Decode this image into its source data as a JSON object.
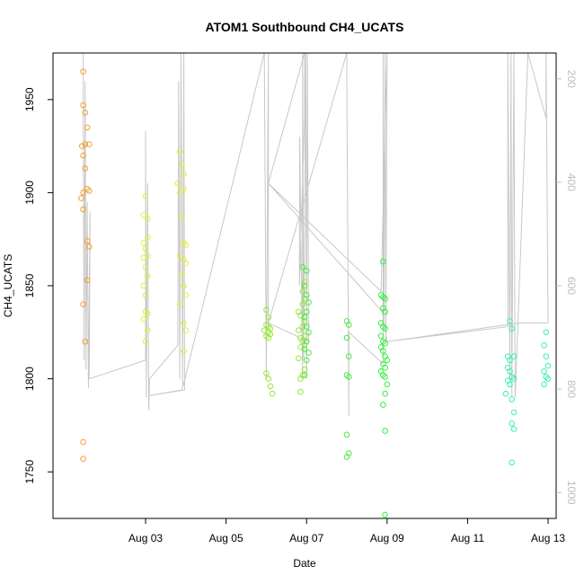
{
  "chart_data": {
    "type": "scatter",
    "title": "ATOM1 Southbound CH4_UCATS",
    "xlabel": "Date",
    "ylabel": "CH4_UCATS",
    "xlim": [
      0.7,
      13.2
    ],
    "ylim": [
      1725,
      1975
    ],
    "y2lim": [
      1050,
      150
    ],
    "x_tick_labels": [
      {
        "x": 3,
        "label": "Aug 03"
      },
      {
        "x": 5,
        "label": "Aug 05"
      },
      {
        "x": 7,
        "label": "Aug 07"
      },
      {
        "x": 9,
        "label": "Aug 09"
      },
      {
        "x": 11,
        "label": "Aug 11"
      },
      {
        "x": 13,
        "label": "Aug 13"
      }
    ],
    "y_ticks": [
      1750,
      1800,
      1850,
      1900,
      1950
    ],
    "y2_ticks": [
      200,
      400,
      600,
      800,
      1000
    ],
    "grid": false,
    "colors": {
      "axis": "#000000",
      "secondary_axis": "#bdbdbd",
      "secondary_line": "#c8c8c8"
    },
    "series": [
      {
        "color": "#f0a030",
        "points": [
          [
            1.45,
            1965
          ],
          [
            1.45,
            1947
          ],
          [
            1.5,
            1943
          ],
          [
            1.55,
            1935
          ],
          [
            1.42,
            1925
          ],
          [
            1.5,
            1926
          ],
          [
            1.6,
            1926
          ],
          [
            1.45,
            1920
          ],
          [
            1.5,
            1913
          ],
          [
            1.55,
            1902
          ],
          [
            1.6,
            1901
          ],
          [
            1.45,
            1900
          ],
          [
            1.4,
            1897
          ],
          [
            1.45,
            1891
          ],
          [
            1.55,
            1874
          ],
          [
            1.6,
            1871
          ],
          [
            1.55,
            1853
          ],
          [
            1.45,
            1840
          ],
          [
            1.5,
            1820
          ],
          [
            1.45,
            1766
          ],
          [
            1.45,
            1757
          ]
        ]
      },
      {
        "color": "#e2ee44",
        "points": [
          [
            3.0,
            1898
          ],
          [
            2.95,
            1888
          ],
          [
            3.05,
            1886
          ],
          [
            3.05,
            1876
          ],
          [
            2.95,
            1873
          ],
          [
            3.0,
            1870
          ],
          [
            3.05,
            1866
          ],
          [
            2.95,
            1865
          ],
          [
            3.0,
            1860
          ],
          [
            3.05,
            1855
          ],
          [
            2.95,
            1850
          ],
          [
            3.0,
            1845
          ],
          [
            3.0,
            1836
          ],
          [
            3.05,
            1835
          ],
          [
            2.95,
            1832
          ],
          [
            3.05,
            1826
          ],
          [
            3.0,
            1820
          ],
          [
            3.85,
            1922
          ],
          [
            3.9,
            1915
          ],
          [
            3.95,
            1910
          ],
          [
            3.8,
            1905
          ],
          [
            3.85,
            1900
          ],
          [
            3.95,
            1902
          ],
          [
            3.9,
            1887
          ],
          [
            3.95,
            1873
          ],
          [
            4.0,
            1872
          ],
          [
            3.85,
            1866
          ],
          [
            3.95,
            1864
          ],
          [
            4.0,
            1862
          ],
          [
            3.9,
            1856
          ],
          [
            3.95,
            1850
          ],
          [
            4.0,
            1845
          ],
          [
            3.85,
            1840
          ],
          [
            3.95,
            1830
          ],
          [
            4.0,
            1826
          ],
          [
            3.95,
            1815
          ]
        ]
      },
      {
        "color": "#9ae63a",
        "points": [
          [
            6.0,
            1837
          ],
          [
            6.05,
            1833
          ],
          [
            6.0,
            1829
          ],
          [
            6.05,
            1828
          ],
          [
            6.1,
            1827
          ],
          [
            5.95,
            1826
          ],
          [
            6.05,
            1825
          ],
          [
            6.1,
            1824
          ],
          [
            6.0,
            1823
          ],
          [
            6.05,
            1822
          ],
          [
            6.0,
            1803
          ],
          [
            6.05,
            1800
          ],
          [
            6.1,
            1796
          ],
          [
            6.15,
            1792
          ],
          [
            6.8,
            1836
          ],
          [
            6.85,
            1834
          ],
          [
            6.95,
            1831
          ],
          [
            6.9,
            1828
          ],
          [
            6.8,
            1826
          ],
          [
            6.95,
            1823
          ],
          [
            6.85,
            1822
          ],
          [
            6.9,
            1820
          ],
          [
            6.95,
            1818
          ],
          [
            6.85,
            1817
          ],
          [
            6.95,
            1852
          ],
          [
            6.9,
            1847
          ],
          [
            6.95,
            1843
          ],
          [
            6.9,
            1840
          ],
          [
            6.8,
            1811
          ],
          [
            6.95,
            1805
          ],
          [
            6.9,
            1802
          ],
          [
            6.85,
            1800
          ],
          [
            6.85,
            1793
          ]
        ]
      },
      {
        "color": "#4ee840",
        "points": [
          [
            6.9,
            1860
          ],
          [
            7.0,
            1858
          ],
          [
            6.95,
            1850
          ],
          [
            7.0,
            1845
          ],
          [
            7.05,
            1841
          ],
          [
            7.0,
            1836
          ],
          [
            6.95,
            1833
          ],
          [
            7.0,
            1828
          ],
          [
            7.05,
            1825
          ],
          [
            7.0,
            1820
          ],
          [
            6.95,
            1816
          ],
          [
            7.05,
            1814
          ],
          [
            7.0,
            1810
          ],
          [
            6.95,
            1802
          ],
          [
            8.0,
            1831
          ],
          [
            8.05,
            1829
          ],
          [
            8.0,
            1822
          ],
          [
            8.05,
            1812
          ],
          [
            8.0,
            1802
          ],
          [
            8.05,
            1801
          ],
          [
            8.0,
            1770
          ],
          [
            8.05,
            1760
          ],
          [
            8.0,
            1758
          ]
        ]
      },
      {
        "color": "#33ee44",
        "points": [
          [
            8.9,
            1863
          ],
          [
            8.85,
            1845
          ],
          [
            8.9,
            1844
          ],
          [
            8.95,
            1843
          ],
          [
            8.9,
            1838
          ],
          [
            8.95,
            1836
          ],
          [
            8.85,
            1830
          ],
          [
            8.9,
            1828
          ],
          [
            8.95,
            1827
          ],
          [
            8.85,
            1823
          ],
          [
            8.9,
            1820
          ],
          [
            8.95,
            1819
          ],
          [
            8.85,
            1817
          ],
          [
            8.9,
            1815
          ],
          [
            8.95,
            1812
          ],
          [
            9.0,
            1810
          ],
          [
            8.9,
            1808
          ],
          [
            8.95,
            1806
          ],
          [
            8.85,
            1804
          ],
          [
            8.9,
            1802
          ],
          [
            8.95,
            1801
          ],
          [
            9.0,
            1797
          ],
          [
            8.95,
            1792
          ],
          [
            8.9,
            1786
          ],
          [
            8.95,
            1772
          ],
          [
            8.95,
            1727
          ]
        ]
      },
      {
        "color": "#3af0b0",
        "points": [
          [
            12.05,
            1831
          ],
          [
            12.1,
            1827
          ],
          [
            12.0,
            1812
          ],
          [
            12.05,
            1810
          ],
          [
            12.15,
            1812
          ],
          [
            12.0,
            1806
          ],
          [
            12.05,
            1804
          ],
          [
            12.1,
            1801
          ],
          [
            12.15,
            1800
          ],
          [
            12.0,
            1799
          ],
          [
            12.05,
            1797
          ],
          [
            11.95,
            1792
          ],
          [
            12.1,
            1789
          ],
          [
            12.15,
            1782
          ],
          [
            12.1,
            1776
          ],
          [
            12.15,
            1773
          ],
          [
            12.1,
            1755
          ],
          [
            12.95,
            1825
          ],
          [
            12.9,
            1818
          ],
          [
            12.95,
            1812
          ],
          [
            13.0,
            1807
          ],
          [
            12.9,
            1804
          ],
          [
            12.95,
            1801
          ],
          [
            13.0,
            1800
          ],
          [
            12.9,
            1797
          ]
        ]
      }
    ],
    "secondary_line": {
      "color": "#c8c8c8",
      "points": [
        [
          1.45,
          1975
        ],
        [
          1.47,
          1810
        ],
        [
          1.5,
          1960
        ],
        [
          1.52,
          1805
        ],
        [
          1.55,
          1895
        ],
        [
          1.58,
          1795
        ],
        [
          1.62,
          1890
        ],
        [
          1.62,
          1880
        ],
        [
          1.6,
          1800
        ],
        [
          3.0,
          1810
        ],
        [
          3.0,
          1933
        ],
        [
          3.02,
          1790
        ],
        [
          3.05,
          1905
        ],
        [
          3.08,
          1783
        ],
        [
          3.1,
          1800
        ],
        [
          3.8,
          1818
        ],
        [
          3.82,
          1960
        ],
        [
          3.85,
          1800
        ],
        [
          3.88,
          1975
        ],
        [
          3.92,
          1795
        ],
        [
          3.95,
          1975
        ],
        [
          3.97,
          1794
        ],
        [
          3.1,
          1791
        ],
        [
          3.9,
          1794
        ],
        [
          3.98,
          1800
        ],
        [
          5.95,
          1975
        ],
        [
          6.0,
          1800
        ],
        [
          6.05,
          1975
        ],
        [
          6.05,
          1830
        ],
        [
          6.05,
          1905
        ],
        [
          6.95,
          1975
        ],
        [
          6.95,
          1940
        ],
        [
          6.82,
          1850
        ],
        [
          6.83,
          1930
        ],
        [
          6.9,
          1800
        ],
        [
          6.9,
          1975
        ],
        [
          6.93,
          1810
        ],
        [
          6.98,
          1975
        ],
        [
          7.0,
          1830
        ],
        [
          7.0,
          1800
        ],
        [
          7.02,
          1975
        ],
        [
          7.05,
          1820
        ],
        [
          6.05,
          1830
        ],
        [
          8.0,
          1975
        ],
        [
          8.0,
          1960
        ],
        [
          8.05,
          1780
        ],
        [
          8.05,
          1825
        ],
        [
          8.9,
          1808
        ],
        [
          8.9,
          1975
        ],
        [
          8.92,
          1830
        ],
        [
          8.95,
          1975
        ],
        [
          8.97,
          1820
        ],
        [
          9.0,
          1975
        ],
        [
          8.85,
          1847
        ],
        [
          6.05,
          1905
        ],
        [
          8.88,
          1836
        ],
        [
          9.0,
          1820
        ],
        [
          12.0,
          1828
        ],
        [
          12.0,
          1975
        ],
        [
          12.05,
          1800
        ],
        [
          12.08,
          1975
        ],
        [
          12.1,
          1790
        ],
        [
          12.15,
          1975
        ],
        [
          12.18,
          1790
        ],
        [
          12.2,
          1800
        ],
        [
          12.5,
          1975
        ],
        [
          12.95,
          1940
        ],
        [
          12.95,
          1975
        ],
        [
          13.0,
          1830
        ],
        [
          12.3,
          1830
        ],
        [
          9.0,
          1820
        ]
      ]
    }
  }
}
